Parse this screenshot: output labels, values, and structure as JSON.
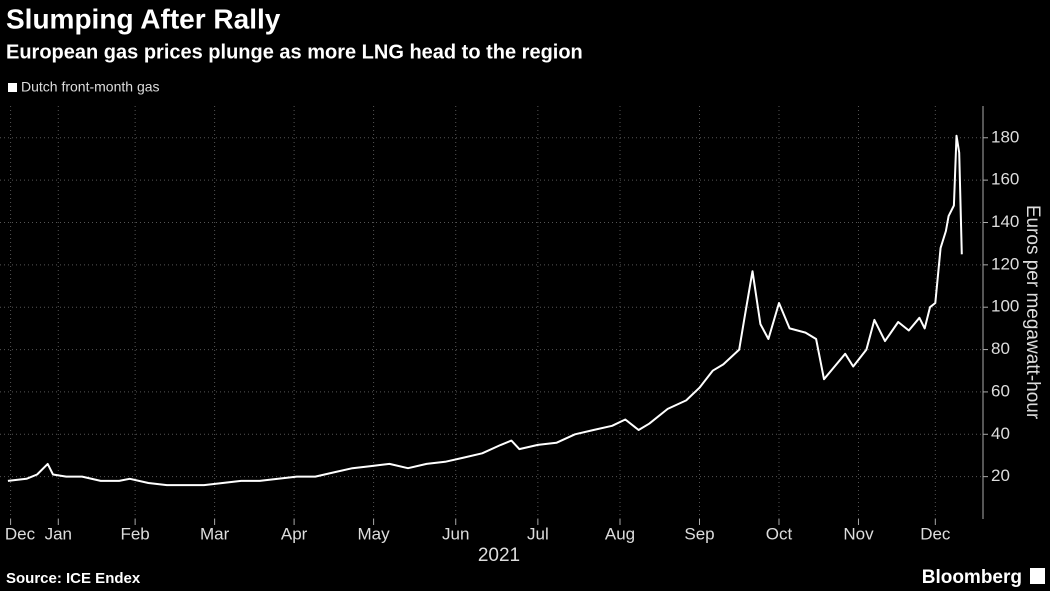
{
  "chart_data": {
    "type": "line",
    "title": "Slumping After Rally",
    "subtitle": "European gas prices plunge as more LNG head to the region",
    "source": "Source: ICE Endex",
    "brand": "Bloomberg",
    "y_axis_label": "Euros per megawatt-hour",
    "x_axis_label": "2021",
    "legend_position": "top-left",
    "series": [
      {
        "name": "Dutch front-month gas",
        "color": "#ffffff",
        "x": [
          "2020-12-28",
          "2021-01-04",
          "2021-01-08",
          "2021-01-12",
          "2021-01-14",
          "2021-01-19",
          "2021-01-25",
          "2021-02-01",
          "2021-02-08",
          "2021-02-12",
          "2021-02-19",
          "2021-02-26",
          "2021-03-05",
          "2021-03-12",
          "2021-03-19",
          "2021-03-26",
          "2021-04-02",
          "2021-04-09",
          "2021-04-16",
          "2021-04-23",
          "2021-04-30",
          "2021-05-07",
          "2021-05-14",
          "2021-05-21",
          "2021-05-28",
          "2021-06-04",
          "2021-06-11",
          "2021-06-18",
          "2021-06-25",
          "2021-07-02",
          "2021-07-06",
          "2021-07-09",
          "2021-07-16",
          "2021-07-23",
          "2021-07-30",
          "2021-08-06",
          "2021-08-13",
          "2021-08-18",
          "2021-08-23",
          "2021-08-27",
          "2021-09-03",
          "2021-09-10",
          "2021-09-15",
          "2021-09-20",
          "2021-09-24",
          "2021-09-30",
          "2021-10-02",
          "2021-10-05",
          "2021-10-08",
          "2021-10-11",
          "2021-10-15",
          "2021-10-19",
          "2021-10-25",
          "2021-10-29",
          "2021-11-01",
          "2021-11-05",
          "2021-11-09",
          "2021-11-12",
          "2021-11-17",
          "2021-11-20",
          "2021-11-24",
          "2021-11-29",
          "2021-12-03",
          "2021-12-07",
          "2021-12-09",
          "2021-12-11",
          "2021-12-13",
          "2021-12-15",
          "2021-12-17",
          "2021-12-18",
          "2021-12-20",
          "2021-12-21",
          "2021-12-22",
          "2021-12-23"
        ],
        "values": [
          18,
          19,
          21,
          26,
          21,
          20,
          20,
          18,
          18,
          19,
          17,
          16,
          16,
          16,
          17,
          18,
          18,
          19,
          20,
          20,
          22,
          24,
          25,
          26,
          24,
          26,
          27,
          29,
          31,
          35,
          37,
          33,
          35,
          36,
          40,
          42,
          44,
          47,
          42,
          45,
          52,
          56,
          62,
          70,
          73,
          80,
          95,
          117,
          92,
          85,
          102,
          90,
          88,
          85,
          66,
          72,
          78,
          72,
          80,
          94,
          84,
          93,
          89,
          95,
          90,
          100,
          102,
          128,
          136,
          143,
          148,
          181,
          173,
          125
        ]
      }
    ],
    "xlim": [
      "2020-12-25",
      "2021-12-31"
    ],
    "xticks": [
      {
        "value": "2020-12-29",
        "label": "Dec"
      },
      {
        "value": "2021-01-16",
        "label": "Jan"
      },
      {
        "value": "2021-02-14",
        "label": "Feb"
      },
      {
        "value": "2021-03-16",
        "label": "Mar"
      },
      {
        "value": "2021-04-15",
        "label": "Apr"
      },
      {
        "value": "2021-05-15",
        "label": "May"
      },
      {
        "value": "2021-06-15",
        "label": "Jun"
      },
      {
        "value": "2021-07-16",
        "label": "Jul"
      },
      {
        "value": "2021-08-16",
        "label": "Aug"
      },
      {
        "value": "2021-09-15",
        "label": "Sep"
      },
      {
        "value": "2021-10-15",
        "label": "Oct"
      },
      {
        "value": "2021-11-14",
        "label": "Nov"
      },
      {
        "value": "2021-12-13",
        "label": "Dec"
      }
    ],
    "ylim": [
      0,
      195
    ],
    "yticks": [
      20,
      40,
      60,
      80,
      100,
      120,
      140,
      160,
      180
    ],
    "grid": true
  }
}
